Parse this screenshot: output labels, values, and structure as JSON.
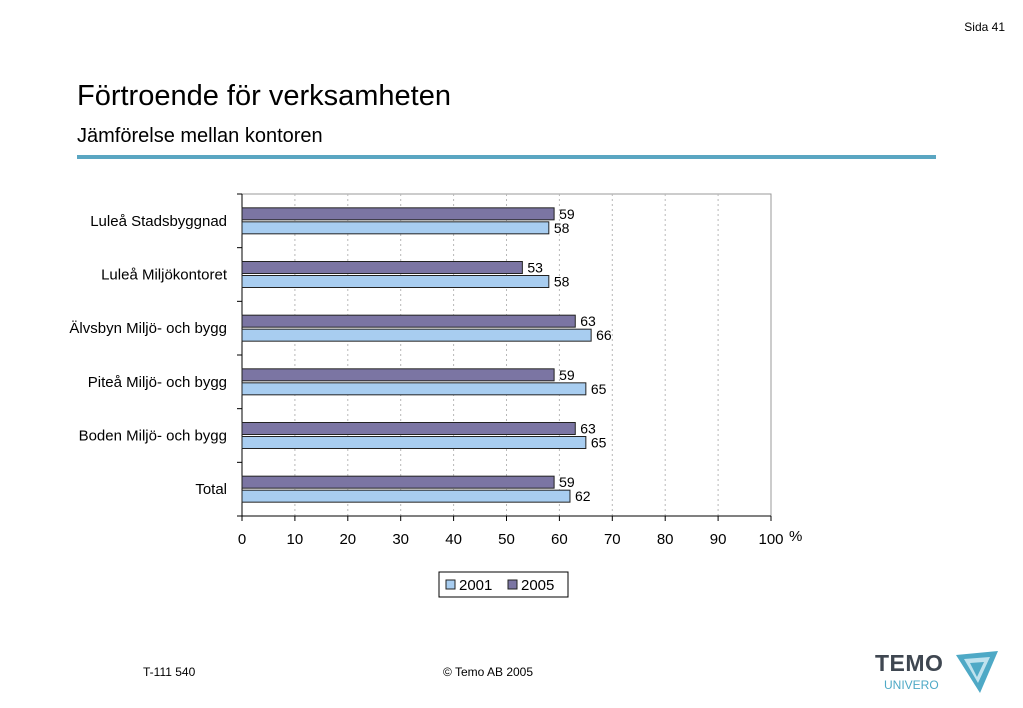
{
  "page_number": "Sida 41",
  "header": {
    "title": "Förtroende för verksamheten",
    "subtitle": "Jämförelse mellan kontoren"
  },
  "colors": {
    "rule": "#5aa6c2",
    "series_2001": "#a8cdf0",
    "series_2005": "#7b75a3"
  },
  "chart_data": {
    "type": "bar",
    "orientation": "horizontal",
    "categories": [
      "Luleå Stadsbyggnad",
      "Luleå Miljökontoret",
      "Älvsbyn Miljö- och bygg",
      "Piteå Miljö- och bygg",
      "Boden Miljö- och bygg",
      "Total"
    ],
    "series": [
      {
        "name": "2005",
        "values": [
          59,
          53,
          63,
          59,
          63,
          59
        ]
      },
      {
        "name": "2001",
        "values": [
          58,
          58,
          66,
          65,
          65,
          62
        ]
      }
    ],
    "x_ticks": [
      "0",
      "10",
      "20",
      "30",
      "40",
      "50",
      "60",
      "70",
      "80",
      "90",
      "100"
    ],
    "x_unit": "%",
    "xlim": [
      0,
      100
    ],
    "grid": "vertical dashed",
    "legend": {
      "position": "bottom",
      "entries": [
        "2001",
        "2005"
      ]
    },
    "title": "",
    "xlabel": "",
    "ylabel": ""
  },
  "footer": {
    "left": "T-111 540",
    "center": "©  Temo AB 2005"
  },
  "logo": {
    "name": "TEMO",
    "sub": "UNIVERO"
  }
}
